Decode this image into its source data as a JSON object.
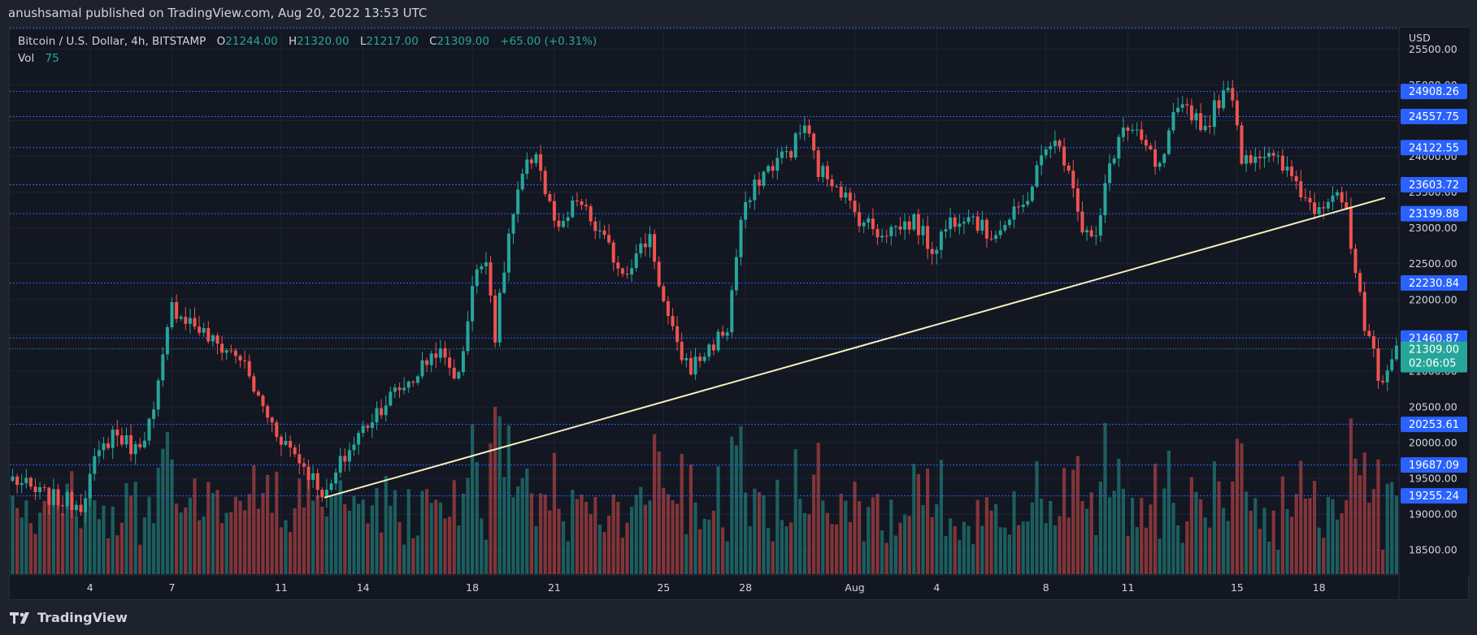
{
  "publish_line": "anushsamal published on TradingView.com, Aug 20, 2022 13:53 UTC",
  "legend": {
    "symbol": "Bitcoin / U.S. Dollar, 4h, BITSTAMP",
    "o_label": "O",
    "o": "21244.00",
    "h_label": "H",
    "h": "21320.00",
    "l_label": "L",
    "l": "21217.00",
    "c_label": "C",
    "c": "21309.00",
    "change": "+65.00 (+0.31%)",
    "vol_label": "Vol",
    "vol": "75"
  },
  "footer": {
    "brand": "TradingView"
  },
  "colors": {
    "up": "#26a69a",
    "down": "#ef5350",
    "level_line": "#2962ff",
    "level_tag": "#2962ff",
    "trendline": "#f5efc0",
    "price_tag": "#26a69a",
    "background": "#131722",
    "grid": "#1e2330"
  },
  "chart_data": {
    "type": "candlestick",
    "currency_label": "USD",
    "ylim": [
      18150,
      25800
    ],
    "y_ticks": [
      18500,
      19000,
      19500,
      20000,
      20500,
      21000,
      21500,
      22000,
      22500,
      23000,
      23500,
      24000,
      24500,
      25000,
      25500
    ],
    "y_tick_labels": [
      "18500.00",
      "19000.00",
      "19500.00",
      "20000.00",
      "20500.00",
      "21000.00",
      "21500.00",
      "22000.00",
      "22500.00",
      "23000.00",
      "23500.00",
      "24000.00",
      "24500.00",
      "25000.00",
      "25500.00"
    ],
    "x_labels": [
      {
        "label": "4",
        "bar": 17
      },
      {
        "label": "7",
        "bar": 35
      },
      {
        "label": "11",
        "bar": 59
      },
      {
        "label": "14",
        "bar": 77
      },
      {
        "label": "18",
        "bar": 101
      },
      {
        "label": "21",
        "bar": 119
      },
      {
        "label": "25",
        "bar": 143
      },
      {
        "label": "28",
        "bar": 161
      },
      {
        "label": "Aug",
        "bar": 185
      },
      {
        "label": "4",
        "bar": 203
      },
      {
        "label": "8",
        "bar": 227
      },
      {
        "label": "11",
        "bar": 245
      },
      {
        "label": "15",
        "bar": 269
      },
      {
        "label": "18",
        "bar": 287
      }
    ],
    "horizontal_levels": [
      24908.26,
      24557.75,
      24122.55,
      23603.72,
      23199.88,
      22230.84,
      21460.87,
      20253.61,
      19687.09,
      19255.24
    ],
    "level_labels": [
      "24908.26",
      "24557.75",
      "24122.55",
      "23603.72",
      "23199.88",
      "22230.84",
      "21460.87",
      "20253.61",
      "19687.09",
      "19255.24"
    ],
    "top_line": 25800,
    "current_price": "21309.00",
    "countdown": "02:06:05",
    "trendline": {
      "start": {
        "bar": 68.5,
        "price": 19230
      },
      "end": {
        "bar": 301.5,
        "price": 23420
      }
    },
    "close_anchors": [
      [
        0,
        19500
      ],
      [
        5,
        19300
      ],
      [
        10,
        19200
      ],
      [
        15,
        19150
      ],
      [
        18,
        19700
      ],
      [
        22,
        20150
      ],
      [
        27,
        19900
      ],
      [
        31,
        20400
      ],
      [
        35,
        21900
      ],
      [
        40,
        21650
      ],
      [
        44,
        21400
      ],
      [
        50,
        21200
      ],
      [
        54,
        20600
      ],
      [
        58,
        20150
      ],
      [
        62,
        19850
      ],
      [
        66,
        19500
      ],
      [
        69,
        19250
      ],
      [
        72,
        19700
      ],
      [
        76,
        20100
      ],
      [
        80,
        20450
      ],
      [
        84,
        20700
      ],
      [
        88,
        20900
      ],
      [
        93,
        21300
      ],
      [
        98,
        20900
      ],
      [
        101,
        22200
      ],
      [
        104,
        22650
      ],
      [
        106,
        21500
      ],
      [
        109,
        22900
      ],
      [
        112,
        23700
      ],
      [
        115,
        24100
      ],
      [
        117,
        23500
      ],
      [
        120,
        22900
      ],
      [
        124,
        23400
      ],
      [
        127,
        23100
      ],
      [
        130,
        22800
      ],
      [
        134,
        22400
      ],
      [
        137,
        22600
      ],
      [
        140,
        22900
      ],
      [
        143,
        21950
      ],
      [
        146,
        21300
      ],
      [
        149,
        21050
      ],
      [
        152,
        21250
      ],
      [
        157,
        21600
      ],
      [
        160,
        23100
      ],
      [
        164,
        23700
      ],
      [
        168,
        23950
      ],
      [
        171,
        24100
      ],
      [
        174,
        24450
      ],
      [
        177,
        23800
      ],
      [
        181,
        23650
      ],
      [
        185,
        23200
      ],
      [
        190,
        22950
      ],
      [
        194,
        23000
      ],
      [
        198,
        23100
      ],
      [
        202,
        22700
      ],
      [
        206,
        23100
      ],
      [
        210,
        23250
      ],
      [
        214,
        22900
      ],
      [
        218,
        23050
      ],
      [
        222,
        23300
      ],
      [
        225,
        23800
      ],
      [
        228,
        24250
      ],
      [
        232,
        23900
      ],
      [
        235,
        23000
      ],
      [
        238,
        22800
      ],
      [
        241,
        23900
      ],
      [
        244,
        24400
      ],
      [
        248,
        24200
      ],
      [
        252,
        23800
      ],
      [
        255,
        24500
      ],
      [
        258,
        24700
      ],
      [
        262,
        24400
      ],
      [
        265,
        24800
      ],
      [
        268,
        24900
      ],
      [
        270,
        24000
      ],
      [
        274,
        24050
      ],
      [
        278,
        23900
      ],
      [
        282,
        23650
      ],
      [
        284,
        23400
      ],
      [
        286,
        23300
      ],
      [
        289,
        23450
      ],
      [
        291,
        23550
      ],
      [
        293,
        23150
      ],
      [
        294,
        22700
      ],
      [
        296,
        22000
      ],
      [
        297,
        21450
      ],
      [
        299,
        21300
      ],
      [
        300,
        20800
      ],
      [
        302,
        21100
      ],
      [
        304,
        21244
      ],
      [
        305,
        21309
      ]
    ],
    "volume_max": 2400
  }
}
